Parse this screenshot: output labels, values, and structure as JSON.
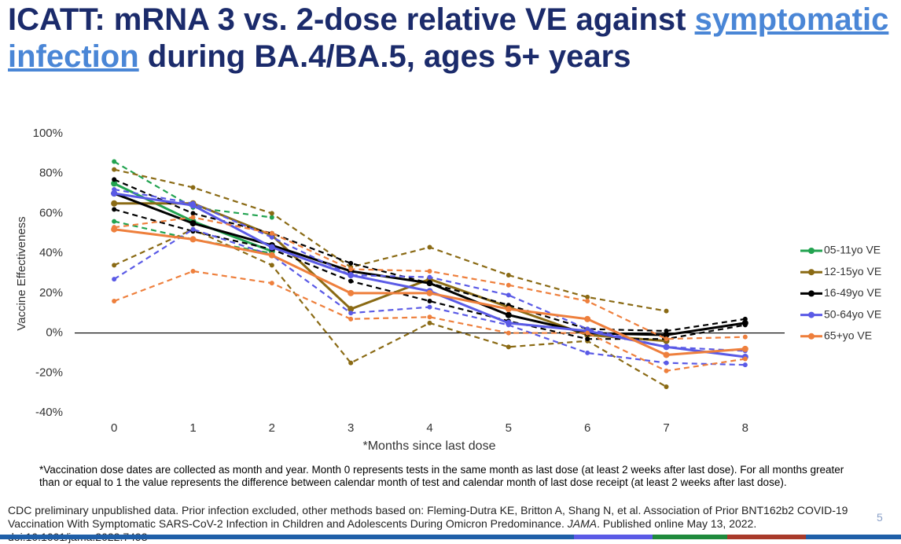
{
  "title": {
    "parts": [
      "ICATT: mRNA 3 vs. 2-dose relative VE against ",
      "symptomatic",
      "infection",
      " during BA.4/BA.5, ages 5+ years"
    ]
  },
  "chart_data": {
    "type": "line",
    "y_label": "Vaccine Effectiveness",
    "x_label": "*Months since last dose",
    "x": [
      0,
      1,
      2,
      3,
      4,
      5,
      6,
      7,
      8
    ],
    "xlim": [
      -0.5,
      8.5
    ],
    "xticks": [
      0,
      1,
      2,
      3,
      4,
      5,
      6,
      7,
      8
    ],
    "ylim": [
      -40,
      100
    ],
    "yticks": [
      {
        "value": -40,
        "label": "-40%"
      },
      {
        "value": -20,
        "label": "-20%"
      },
      {
        "value": 0,
        "label": "0%"
      },
      {
        "value": 20,
        "label": "20%"
      },
      {
        "value": 40,
        "label": "40%"
      },
      {
        "value": 60,
        "label": "60%"
      },
      {
        "value": 80,
        "label": "80%"
      },
      {
        "value": 100,
        "label": "100%"
      }
    ],
    "zero_line": true,
    "legend": "right",
    "series": [
      {
        "name": "05-11yo VE",
        "color": "#22a350",
        "values": [
          75,
          56,
          41,
          null,
          null,
          null,
          null,
          null,
          null
        ],
        "lower": [
          56,
          47,
          40,
          null,
          null,
          null,
          null,
          null,
          null
        ],
        "upper": [
          86,
          63,
          58,
          null,
          null,
          null,
          null,
          null,
          null
        ]
      },
      {
        "name": "12-15yo VE",
        "color": "#8a6a14",
        "values": [
          65,
          65,
          49,
          12,
          27,
          13,
          -1,
          -4,
          null
        ],
        "lower": [
          34,
          52,
          34,
          -15,
          5,
          -7,
          -4,
          -27,
          null
        ],
        "upper": [
          82,
          73,
          60,
          33,
          43,
          29,
          18,
          11,
          null
        ]
      },
      {
        "name": "16-49yo VE",
        "color": "#000000",
        "values": [
          70,
          55,
          44,
          31,
          25,
          9,
          0,
          -1,
          5
        ],
        "lower": [
          62,
          51,
          42,
          26,
          16,
          6,
          -3,
          -3,
          4
        ],
        "upper": [
          77,
          60,
          50,
          35,
          25,
          14,
          2,
          1,
          7
        ]
      },
      {
        "name": "50-64yo VE",
        "color": "#5a5ae6",
        "values": [
          70,
          64,
          43,
          29,
          21,
          5,
          1,
          -7,
          -12
        ],
        "lower": [
          27,
          52,
          39,
          10,
          13,
          4,
          -10,
          -15,
          -16
        ],
        "upper": [
          72,
          65,
          48,
          29,
          28,
          19,
          2,
          -7,
          -9
        ]
      },
      {
        "name": "65+yo VE",
        "color": "#ee7f3c",
        "values": [
          52,
          47,
          39,
          20,
          20,
          12,
          7,
          -11,
          -8
        ],
        "lower": [
          16,
          31,
          25,
          7,
          8,
          0,
          0,
          -19,
          -13
        ],
        "upper": [
          53,
          58,
          50,
          32,
          31,
          24,
          16,
          -3,
          -2
        ]
      }
    ]
  },
  "footnote": "*Vaccination dose dates are collected as month and year. Month 0 represents tests in the same month as last dose (at least 2 weeks after last dose).  For all months greater than or equal to 1 the value represents the difference between calendar month of test and calendar month of last dose receipt (at least 2 weeks after last dose).",
  "source": {
    "parts": [
      "CDC preliminary unpublished data. Prior infection excluded, other methods based on: Fleming-Dutra KE, Britton A, Shang N, et al. Association of Prior BNT162b2 COVID-19 Vaccination With Symptomatic SARS-CoV-2 Infection in Children and Adolescents During Omicron Predominance. ",
      "JAMA",
      ". Published online May 13, 2022. doi:10.1001/jama.2022.7493"
    ]
  },
  "page_number": "5"
}
